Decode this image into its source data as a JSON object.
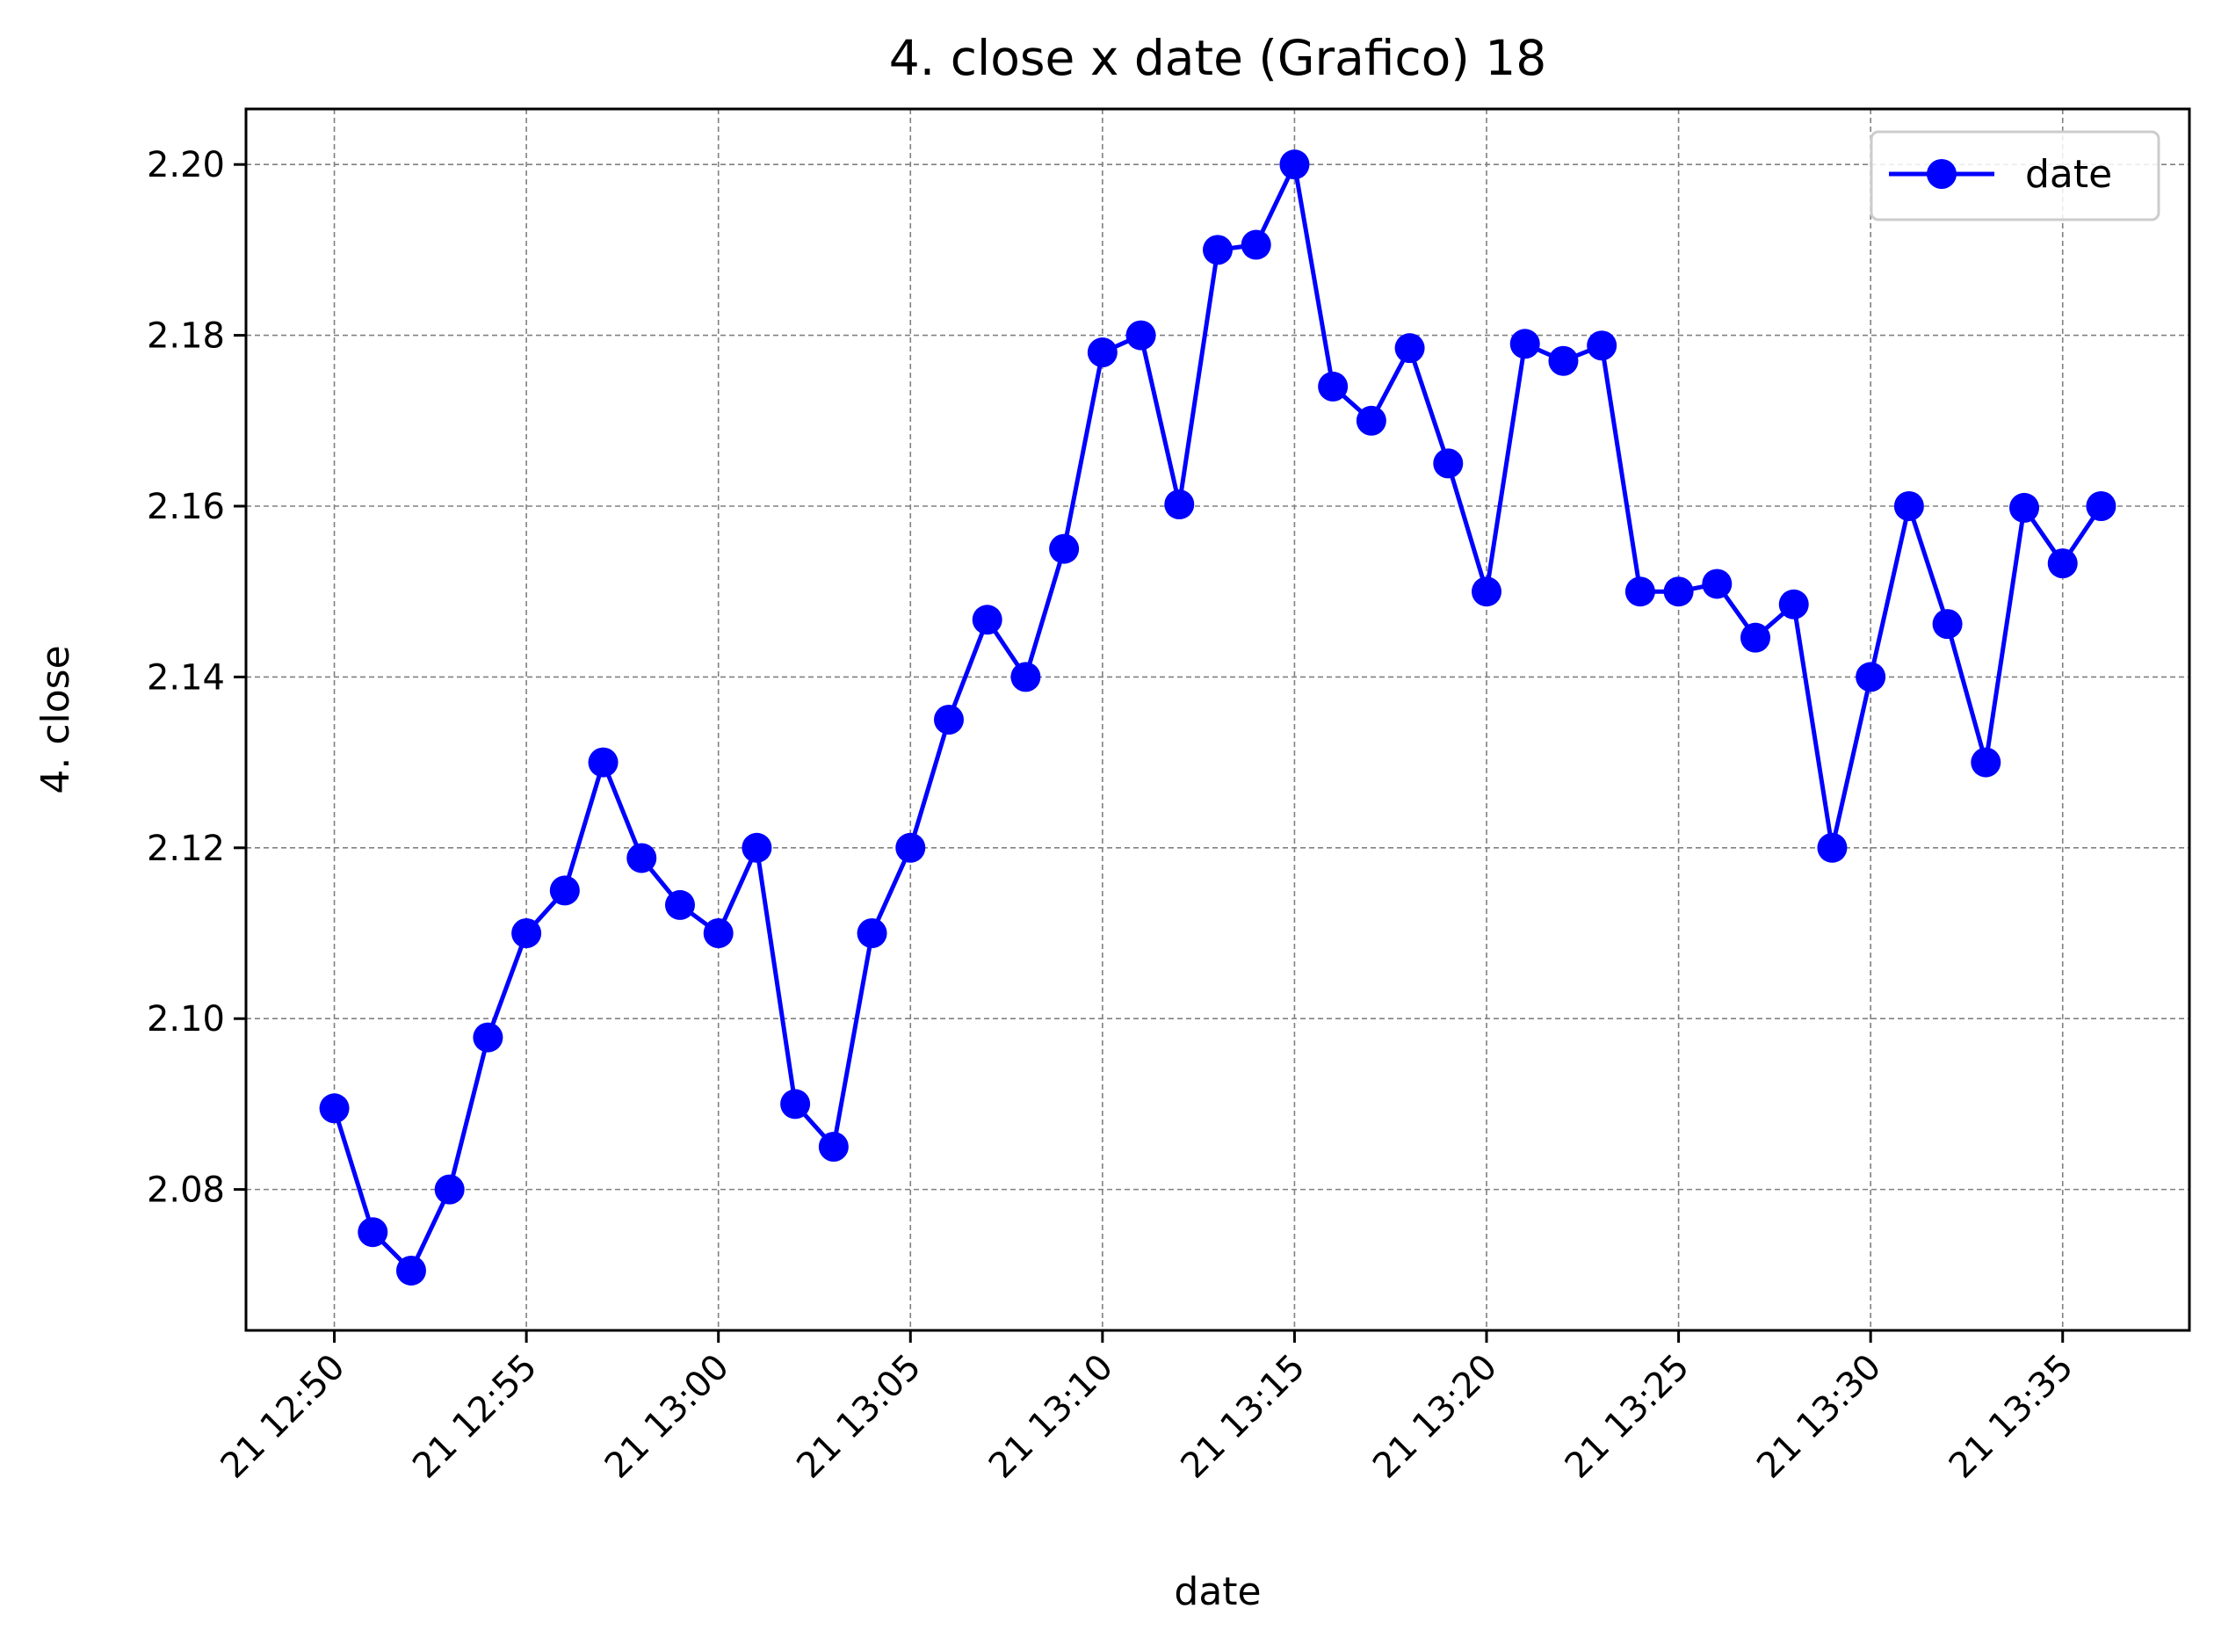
{
  "chart_data": {
    "type": "line",
    "title": "4. close x date (Grafico) 18",
    "xlabel": "date",
    "ylabel": "4. close",
    "x_date_prefix": "21",
    "x": [
      "12:50",
      "12:51",
      "12:52",
      "12:53",
      "12:54",
      "12:55",
      "12:56",
      "12:57",
      "12:58",
      "12:59",
      "13:00",
      "13:01",
      "13:02",
      "13:03",
      "13:04",
      "13:05",
      "13:06",
      "13:07",
      "13:08",
      "13:09",
      "13:10",
      "13:11",
      "13:12",
      "13:13",
      "13:14",
      "13:15",
      "13:16",
      "13:17",
      "13:18",
      "13:19",
      "13:20",
      "13:21",
      "13:22",
      "13:23",
      "13:24",
      "13:25",
      "13:26",
      "13:27",
      "13:28",
      "13:29",
      "13:30",
      "13:31",
      "13:32",
      "13:33",
      "13:34",
      "13:35",
      "13:36"
    ],
    "x_ticks": [
      "21 12:50",
      "21 12:55",
      "21 13:00",
      "21 13:05",
      "21 13:10",
      "21 13:15",
      "21 13:20",
      "21 13:25",
      "21 13:30",
      "21 13:35"
    ],
    "x_tick_times": [
      "12:50",
      "12:55",
      "13:00",
      "13:05",
      "13:10",
      "13:15",
      "13:20",
      "13:25",
      "13:30",
      "13:35"
    ],
    "xlim": [
      "12:47.7",
      "13:38.3"
    ],
    "ylim": [
      2.0635,
      2.2065
    ],
    "y_ticks": [
      "2.08",
      "2.10",
      "2.12",
      "2.14",
      "2.16",
      "2.18",
      "2.20"
    ],
    "series": [
      {
        "name": "date",
        "color": "#0000ff",
        "marker": "circle",
        "values": [
          2.0895,
          2.075,
          2.0705,
          2.08,
          2.0978,
          2.11,
          2.115,
          2.13,
          2.1188,
          2.1133,
          2.11,
          2.12,
          2.09,
          2.085,
          2.11,
          2.12,
          2.135,
          2.1467,
          2.14,
          2.155,
          2.178,
          2.18,
          2.1602,
          2.19,
          2.1906,
          2.2,
          2.174,
          2.17,
          2.1785,
          2.165,
          2.15,
          2.179,
          2.177,
          2.1788,
          2.15,
          2.15,
          2.1509,
          2.1446,
          2.1485,
          2.12,
          2.14,
          2.16,
          2.1462,
          2.13,
          2.1598,
          2.1533,
          2.16
        ]
      }
    ],
    "grid": true,
    "legend_position": "top-right"
  }
}
